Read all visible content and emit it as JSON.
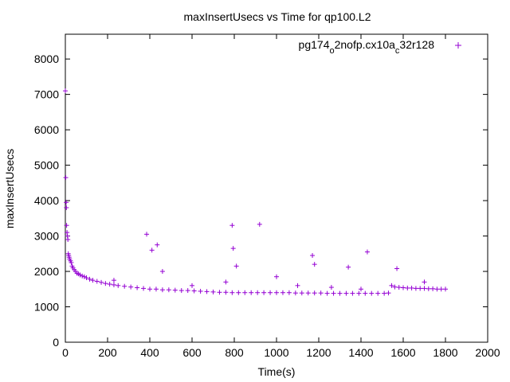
{
  "chart_data": {
    "type": "scatter",
    "title": "maxInsertUsecs vs Time for qp100.L2",
    "xlabel": "Time(s)",
    "ylabel": "maxInsertUsecs",
    "xlim": [
      0,
      2000
    ],
    "ylim": [
      0,
      8700
    ],
    "x_ticks": [
      0,
      200,
      400,
      600,
      800,
      1000,
      1200,
      1400,
      1600,
      1800,
      2000
    ],
    "y_ticks": [
      0,
      1000,
      2000,
      3000,
      4000,
      5000,
      6000,
      7000,
      8000
    ],
    "grid": false,
    "legend_position": "top-right",
    "marker": "plus",
    "series": [
      {
        "name_parts": [
          {
            "text": "pg174",
            "sub": false
          },
          {
            "text": "o",
            "sub": true
          },
          {
            "text": "2nofp.cx10a",
            "sub": false
          },
          {
            "text": "c",
            "sub": true
          },
          {
            "text": "32r128",
            "sub": false
          }
        ],
        "color": "#9400d3",
        "points": [
          [
            0,
            7100
          ],
          [
            2,
            4650
          ],
          [
            4,
            3950
          ],
          [
            5,
            3800
          ],
          [
            6,
            3300
          ],
          [
            8,
            3100
          ],
          [
            10,
            3000
          ],
          [
            12,
            2900
          ],
          [
            14,
            2500
          ],
          [
            16,
            2450
          ],
          [
            18,
            2400
          ],
          [
            20,
            2350
          ],
          [
            24,
            2300
          ],
          [
            28,
            2250
          ],
          [
            32,
            2150
          ],
          [
            36,
            2100
          ],
          [
            42,
            2050
          ],
          [
            48,
            2000
          ],
          [
            55,
            1950
          ],
          [
            62,
            1930
          ],
          [
            70,
            1900
          ],
          [
            80,
            1870
          ],
          [
            90,
            1850
          ],
          [
            100,
            1820
          ],
          [
            115,
            1780
          ],
          [
            130,
            1750
          ],
          [
            150,
            1720
          ],
          [
            170,
            1690
          ],
          [
            190,
            1660
          ],
          [
            210,
            1640
          ],
          [
            230,
            1620
          ],
          [
            250,
            1600
          ],
          [
            280,
            1580
          ],
          [
            310,
            1560
          ],
          [
            340,
            1540
          ],
          [
            370,
            1520
          ],
          [
            400,
            1500
          ],
          [
            430,
            1500
          ],
          [
            460,
            1480
          ],
          [
            490,
            1480
          ],
          [
            520,
            1470
          ],
          [
            550,
            1460
          ],
          [
            580,
            1460
          ],
          [
            610,
            1450
          ],
          [
            640,
            1440
          ],
          [
            670,
            1430
          ],
          [
            700,
            1420
          ],
          [
            730,
            1410
          ],
          [
            760,
            1410
          ],
          [
            790,
            1400
          ],
          [
            820,
            1400
          ],
          [
            850,
            1400
          ],
          [
            880,
            1400
          ],
          [
            910,
            1400
          ],
          [
            940,
            1400
          ],
          [
            970,
            1400
          ],
          [
            1000,
            1400
          ],
          [
            1030,
            1400
          ],
          [
            1060,
            1400
          ],
          [
            1090,
            1390
          ],
          [
            1120,
            1390
          ],
          [
            1150,
            1390
          ],
          [
            1180,
            1390
          ],
          [
            1210,
            1390
          ],
          [
            1240,
            1380
          ],
          [
            1270,
            1380
          ],
          [
            1300,
            1380
          ],
          [
            1330,
            1380
          ],
          [
            1360,
            1380
          ],
          [
            1390,
            1380
          ],
          [
            1420,
            1380
          ],
          [
            1450,
            1380
          ],
          [
            1480,
            1380
          ],
          [
            1510,
            1380
          ],
          [
            1530,
            1390
          ],
          [
            1545,
            1600
          ],
          [
            1560,
            1560
          ],
          [
            1580,
            1550
          ],
          [
            1600,
            1540
          ],
          [
            1620,
            1530
          ],
          [
            1640,
            1530
          ],
          [
            1660,
            1520
          ],
          [
            1680,
            1520
          ],
          [
            1700,
            1520
          ],
          [
            1720,
            1510
          ],
          [
            1740,
            1510
          ],
          [
            1760,
            1500
          ],
          [
            1780,
            1500
          ],
          [
            1800,
            1500
          ]
        ],
        "outliers": [
          [
            385,
            3050
          ],
          [
            410,
            2600
          ],
          [
            435,
            2750
          ],
          [
            460,
            2000
          ],
          [
            790,
            3300
          ],
          [
            795,
            2650
          ],
          [
            810,
            2150
          ],
          [
            920,
            3330
          ],
          [
            1000,
            1850
          ],
          [
            1170,
            2450
          ],
          [
            1180,
            2200
          ],
          [
            1340,
            2120
          ],
          [
            1430,
            2550
          ],
          [
            1570,
            2080
          ],
          [
            230,
            1750
          ],
          [
            600,
            1600
          ],
          [
            760,
            1700
          ],
          [
            1100,
            1600
          ],
          [
            1260,
            1550
          ],
          [
            1400,
            1500
          ],
          [
            1700,
            1700
          ]
        ]
      }
    ]
  }
}
